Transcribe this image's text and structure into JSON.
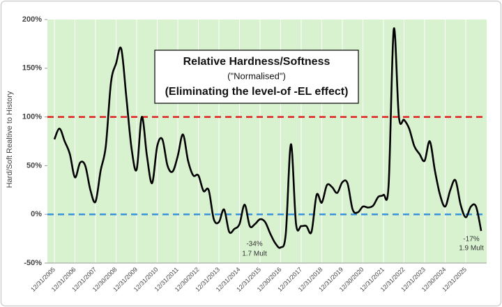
{
  "chart_data": {
    "type": "line",
    "title": "Relative Hardness/Softness",
    "subtitle": "(\"Normalised\")",
    "note": "(Eliminating the level-of -EL effect)",
    "y_label": "Hard/Soft Realtive to History",
    "annotations": [
      "-34%",
      "1.7 Mult",
      "-17%",
      "1.9 Mult"
    ],
    "categories": [
      "12/31/2005",
      null,
      null,
      null,
      "12/31/2006",
      null,
      null,
      null,
      "12/31/2007",
      null,
      null,
      null,
      "12/30/2008",
      null,
      null,
      null,
      "12/31/2009",
      null,
      null,
      null,
      "12/31/2010",
      null,
      null,
      null,
      "12/31/2011",
      null,
      null,
      null,
      "12/30/2012",
      null,
      null,
      null,
      "12/31/2013",
      null,
      null,
      null,
      "12/31/2014",
      null,
      null,
      null,
      "12/31/2015",
      null,
      null,
      null,
      "12/30/2016",
      null,
      null,
      null,
      "12/31/2017",
      null,
      null,
      null,
      "12/31/2018",
      null,
      null,
      null,
      "12/31/2019",
      null,
      null,
      null,
      "12/30/2020",
      null,
      null,
      null,
      "12/31/2021",
      null,
      null,
      null,
      "12/31/2022",
      null,
      null,
      null,
      "12/31/2023",
      null,
      null,
      null,
      "12/30/2024",
      null,
      null,
      null,
      "12/31/2025",
      null,
      null,
      null
    ],
    "series": [
      {
        "color": "#000000",
        "values": [
          77,
          88,
          75,
          62,
          38,
          53,
          50,
          25,
          13,
          45,
          70,
          135,
          155,
          170,
          120,
          68,
          46,
          100,
          60,
          32,
          70,
          77,
          50,
          44,
          60,
          82,
          55,
          40,
          40,
          24,
          25,
          -5,
          -8,
          5,
          -18,
          -15,
          -10,
          10,
          -12,
          -10,
          -5,
          -8,
          -20,
          -30,
          -34,
          -20,
          72,
          -10,
          -12,
          -12,
          -18,
          20,
          12,
          30,
          28,
          22,
          33,
          32,
          5,
          2,
          8,
          7,
          9,
          18,
          20,
          30,
          190,
          100,
          97,
          88,
          70,
          62,
          55,
          75,
          45,
          20,
          8,
          25,
          35,
          10,
          -3,
          8,
          8,
          -17
        ]
      }
    ],
    "reference_lines": [
      {
        "value": 100,
        "color": "#e02020"
      },
      {
        "value": 0,
        "color": "#3a92d8"
      }
    ],
    "ylim": [
      -50,
      200
    ],
    "yticks": [
      {
        "value": -50,
        "label": "-50%"
      },
      {
        "value": 0,
        "label": "0%"
      },
      {
        "value": 50,
        "label": "50%"
      },
      {
        "value": 100,
        "label": "100%"
      },
      {
        "value": 150,
        "label": "150%"
      },
      {
        "value": 200,
        "label": "200%"
      }
    ],
    "background": "#d8f2cf"
  }
}
